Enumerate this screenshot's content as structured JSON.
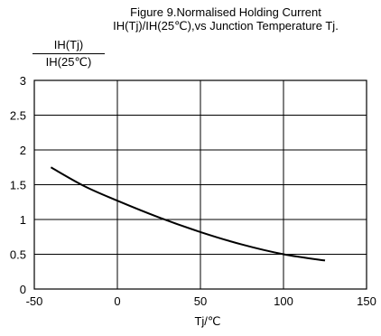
{
  "chart_data": {
    "type": "line",
    "title_line1": "Figure 9.Normalised Holding Current",
    "title_line2": "IH(Tj)/IH(25℃),vs Junction Temperature Tj.",
    "ylabel_numerator": "IH(Tj)",
    "ylabel_denominator": "IH(25℃)",
    "xlabel": "Tj/℃",
    "xlim": [
      -50,
      150
    ],
    "ylim": [
      0,
      3
    ],
    "xticks": [
      -50,
      0,
      50,
      100,
      150
    ],
    "yticks": [
      0,
      0.5,
      1,
      1.5,
      2,
      2.5,
      3
    ],
    "grid": true,
    "line_color": "#000000",
    "series": [
      {
        "x": [
          -40,
          -20,
          0,
          25,
          50,
          75,
          100,
          125
        ],
        "y": [
          1.75,
          1.48,
          1.27,
          1.03,
          0.82,
          0.64,
          0.5,
          0.41
        ]
      }
    ]
  }
}
